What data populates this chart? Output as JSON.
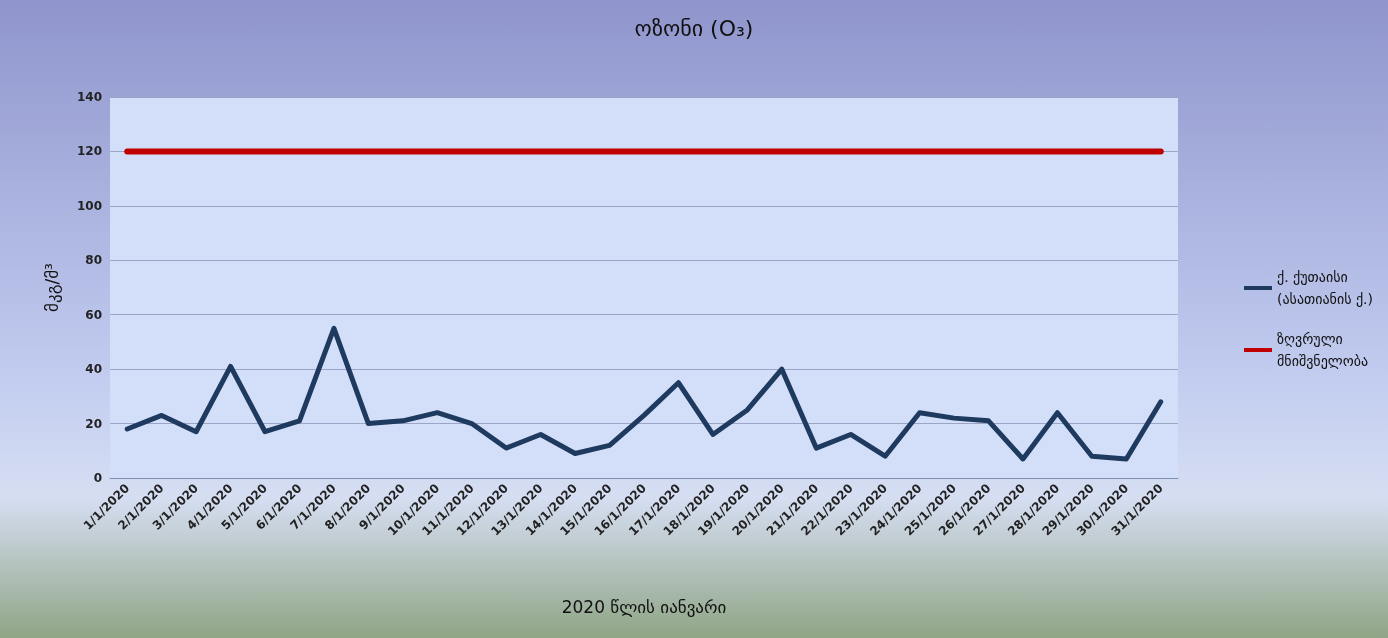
{
  "chart_data": {
    "type": "line",
    "title": "ოზონი (O₃)",
    "xlabel": "2020 წლის იანვარი",
    "ylabel": "მკგ/მ³",
    "categories": [
      "1/1/2020",
      "2/1/2020",
      "3/1/2020",
      "4/1/2020",
      "5/1/2020",
      "6/1/2020",
      "7/1/2020",
      "8/1/2020",
      "9/1/2020",
      "10/1/2020",
      "11/1/2020",
      "12/1/2020",
      "13/1/2020",
      "14/1/2020",
      "15/1/2020",
      "16/1/2020",
      "17/1/2020",
      "18/1/2020",
      "19/1/2020",
      "20/1/2020",
      "21/1/2020",
      "22/1/2020",
      "23/1/2020",
      "24/1/2020",
      "25/1/2020",
      "26/1/2020",
      "27/1/2020",
      "28/1/2020",
      "29/1/2020",
      "30/1/2020",
      "31/1/2020"
    ],
    "series": [
      {
        "name": "ქ. ქუთაისი\n(ასათიანის ქ.)",
        "color": "#1f3a5f",
        "values": [
          18,
          23,
          17,
          41,
          17,
          21,
          55,
          20,
          21,
          24,
          20,
          11,
          16,
          9,
          12,
          23,
          35,
          16,
          25,
          40,
          11,
          16,
          8,
          24,
          22,
          21,
          7,
          24,
          8,
          7,
          28
        ]
      },
      {
        "name": "ზღვრული\nმნიშვნელობა",
        "color": "#c00000",
        "values": [
          120,
          120,
          120,
          120,
          120,
          120,
          120,
          120,
          120,
          120,
          120,
          120,
          120,
          120,
          120,
          120,
          120,
          120,
          120,
          120,
          120,
          120,
          120,
          120,
          120,
          120,
          120,
          120,
          120,
          120,
          120
        ]
      }
    ],
    "ylim": [
      0,
      140
    ],
    "yticks": [
      0,
      20,
      40,
      60,
      80,
      100,
      120,
      140
    ],
    "grid": "y",
    "legend": "right",
    "marker": "none",
    "line_style": "solid"
  }
}
